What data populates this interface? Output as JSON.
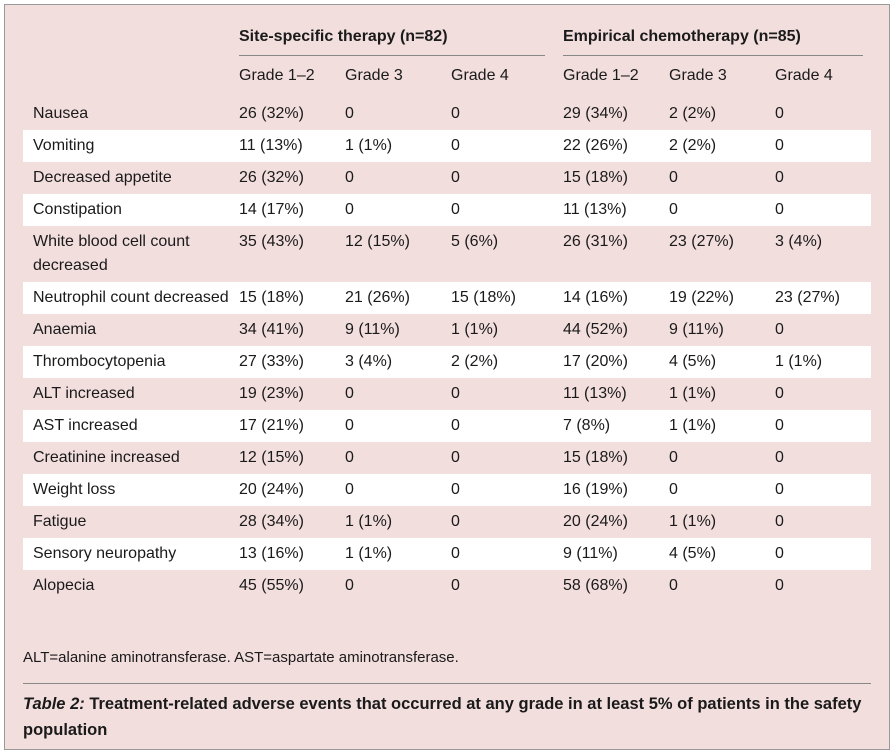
{
  "table": {
    "groups": [
      "Site-specific therapy (n=82)",
      "Empirical chemotherapy (n=85)"
    ],
    "subheaders": [
      "Grade 1–2",
      "Grade 3",
      "Grade 4",
      "Grade 1–2",
      "Grade 3",
      "Grade 4"
    ],
    "rows": [
      {
        "label": "Nausea",
        "cells": [
          "26 (32%)",
          "0",
          "0",
          "29 (34%)",
          "2 (2%)",
          "0"
        ]
      },
      {
        "label": "Vomiting",
        "cells": [
          "11 (13%)",
          "1 (1%)",
          "0",
          "22 (26%)",
          "2 (2%)",
          "0"
        ]
      },
      {
        "label": "Decreased appetite",
        "cells": [
          "26 (32%)",
          "0",
          "0",
          "15 (18%)",
          "0",
          "0"
        ]
      },
      {
        "label": "Constipation",
        "cells": [
          "14 (17%)",
          "0",
          "0",
          "11 (13%)",
          "0",
          "0"
        ]
      },
      {
        "label": "White blood cell count decreased",
        "cells": [
          "35 (43%)",
          "12 (15%)",
          "5 (6%)",
          "26 (31%)",
          "23 (27%)",
          "3 (4%)"
        ]
      },
      {
        "label": "Neutrophil count decreased",
        "cells": [
          "15 (18%)",
          "21 (26%)",
          "15 (18%)",
          "14 (16%)",
          "19 (22%)",
          "23 (27%)"
        ]
      },
      {
        "label": "Anaemia",
        "cells": [
          "34 (41%)",
          "9 (11%)",
          "1 (1%)",
          "44 (52%)",
          "9 (11%)",
          "0"
        ]
      },
      {
        "label": "Thrombocytopenia",
        "cells": [
          "27 (33%)",
          "3 (4%)",
          "2 (2%)",
          "17 (20%)",
          "4 (5%)",
          "1 (1%)"
        ]
      },
      {
        "label": "ALT increased",
        "cells": [
          "19 (23%)",
          "0",
          "0",
          "11 (13%)",
          "1 (1%)",
          "0"
        ]
      },
      {
        "label": "AST increased",
        "cells": [
          "17 (21%)",
          "0",
          "0",
          "7 (8%)",
          "1 (1%)",
          "0"
        ]
      },
      {
        "label": "Creatinine increased",
        "cells": [
          "12 (15%)",
          "0",
          "0",
          "15 (18%)",
          "0",
          "0"
        ]
      },
      {
        "label": "Weight loss",
        "cells": [
          "20 (24%)",
          "0",
          "0",
          "16 (19%)",
          "0",
          "0"
        ]
      },
      {
        "label": "Fatigue",
        "cells": [
          "28 (34%)",
          "1 (1%)",
          "0",
          "20 (24%)",
          "1 (1%)",
          "0"
        ]
      },
      {
        "label": "Sensory neuropathy",
        "cells": [
          "13 (16%)",
          "1 (1%)",
          "0",
          "9 (11%)",
          "4 (5%)",
          "0"
        ]
      },
      {
        "label": "Alopecia",
        "cells": [
          "45 (55%)",
          "0",
          "0",
          "58 (68%)",
          "0",
          "0"
        ]
      }
    ],
    "footnote": "ALT=alanine aminotransferase. AST=aspartate aminotransferase.",
    "caption": {
      "label": "Table 2:",
      "text": "Treatment-related adverse events that occurred at any grade in at least 5% of patients in the safety population"
    }
  }
}
